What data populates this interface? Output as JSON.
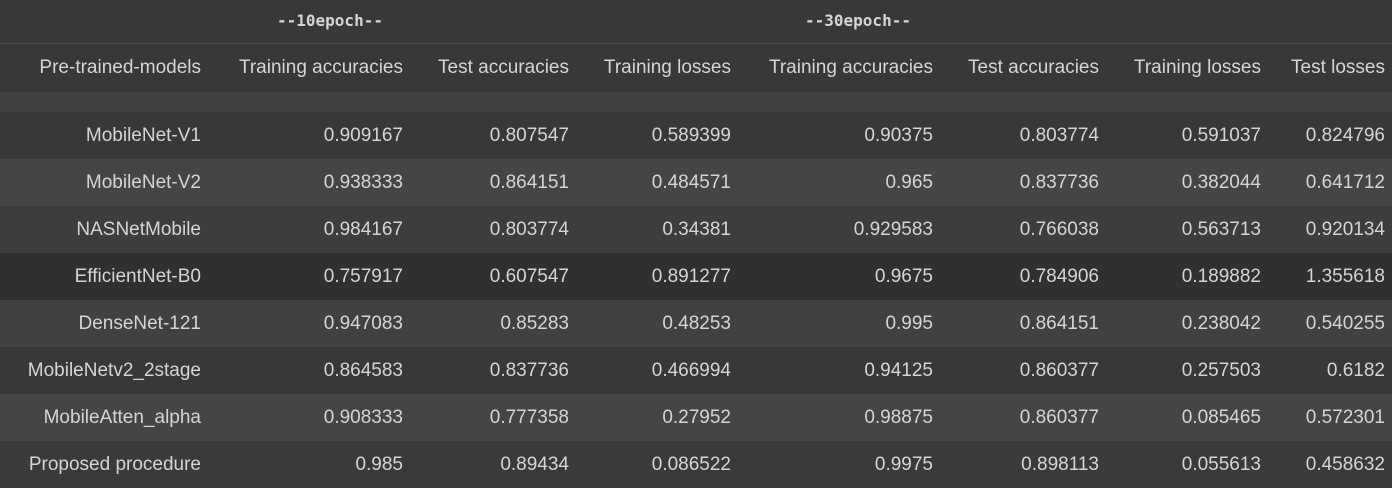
{
  "epoch_headers": {
    "ten": "--10epoch--",
    "thirty": "--30epoch--"
  },
  "columns": [
    "Pre-trained-models",
    "Training accuracies",
    "Test accuracies",
    "Training losses",
    "Training accuracies",
    "Test accuracies",
    "Training losses",
    "Test losses"
  ],
  "rows": [
    [
      "MobileNet-V1",
      "0.909167",
      "0.807547",
      "0.589399",
      "0.90375",
      "0.803774",
      "0.591037",
      "0.824796"
    ],
    [
      "MobileNet-V2",
      "0.938333",
      "0.864151",
      "0.484571",
      "0.965",
      "0.837736",
      "0.382044",
      "0.641712"
    ],
    [
      "NASNetMobile",
      "0.984167",
      "0.803774",
      "0.34381",
      "0.929583",
      "0.766038",
      "0.563713",
      "0.920134"
    ],
    [
      "EfficientNet-B0",
      "0.757917",
      "0.607547",
      "0.891277",
      "0.9675",
      "0.784906",
      "0.189882",
      "1.355618"
    ],
    [
      "DenseNet-121",
      "0.947083",
      "0.85283",
      "0.48253",
      "0.995",
      "0.864151",
      "0.238042",
      "0.540255"
    ],
    [
      "MobileNetv2_2stage",
      "0.864583",
      "0.837736",
      "0.466994",
      "0.94125",
      "0.860377",
      "0.257503",
      "0.6182"
    ],
    [
      "MobileAtten_alpha",
      "0.908333",
      "0.777358",
      "0.27952",
      "0.98875",
      "0.860377",
      "0.085465",
      "0.572301"
    ],
    [
      "Proposed procedure",
      "0.985",
      "0.89434",
      "0.086522",
      "0.9975",
      "0.898113",
      "0.055613",
      "0.458632"
    ]
  ]
}
